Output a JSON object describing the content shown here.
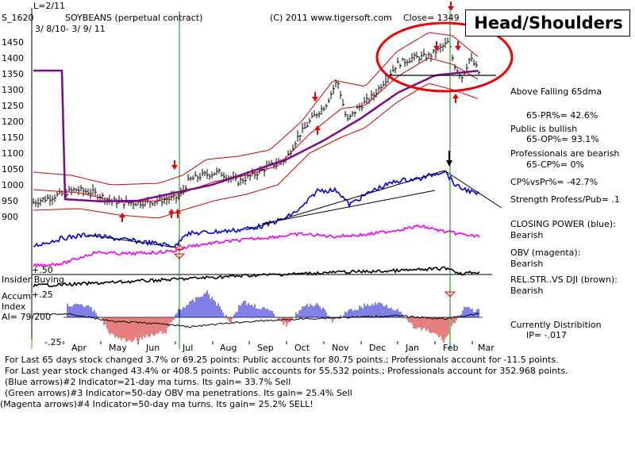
{
  "header": {
    "lscale": "L=2/11",
    "symbol": "S_1620",
    "name": "SOYBEANS (perpetual contract)",
    "copyright": "(C) 2011 www.tigersoft.com",
    "close": "Close= 1349",
    "daterange": "3/ 8/10- 3/ 9/ 11"
  },
  "annotation": "Head/Shoulders",
  "side_panel": [
    "Above Falling 65dma",
    "65-PR%= 42.6%",
    "Public is bullish",
    "65-OP%= 93.1%",
    "Professionals are bearish",
    "65-CP%= 0%",
    "CP%vsPr%= -42.7%",
    "Strength Profess/Pub= .1",
    "CLOSING POWER (blue):",
    "Bearish",
    "OBV (magenta):",
    "Bearish",
    "REL.STR..VS DJI (brown):",
    "Bearish",
    "Currently Distribition",
    "IP= -.017"
  ],
  "insider_labels": {
    "plus50": "+.50",
    "insider": "Insider Buying",
    "accum": "Accum",
    "plus25": "+.25",
    "index": "Index",
    "ai": "AI= 79/200",
    "minus25": "-.25"
  },
  "footer": [
    "For Last 65 days stock changed  3.7% or  69.25 points:  Public accounts for  80.75 points.;  Professionals account for -11.5 points.",
    "For Last year stock changed  43.4% or  408.5 points:  Public accounts for  55.532 points.;  Professionals account for  352.968 points.",
    "(Blue arrows)#2 Indicator=21-day ma turns. Its gain= 33.7% Sell",
    "(Green arrows)#3 Indicator=50-day OBV ma penetrations. Its gain= 25.4% Sell",
    "(Magenta arrows)#4 Indicator=50-day ma turns. Its gain= 25.2% SELL!"
  ],
  "colors": {
    "price": "#000000",
    "band": "#cc0000",
    "ma65": "#7a0a8c",
    "closing_power": "#0000ee",
    "obv": "#ee00ee",
    "relstr": "#000000",
    "accum_pos": "#0000cc",
    "accum_neg": "#cc0000",
    "vline": "#008800",
    "circle": "#ee0000",
    "arrow": "#ee0000"
  },
  "chart_data": {
    "type": "line",
    "title": "SOYBEANS (perpetual contract)",
    "y_ticks": [
      1450,
      1400,
      1350,
      1300,
      1250,
      1200,
      1150,
      1100,
      1050,
      1000,
      950,
      900
    ],
    "ylim": [
      900,
      1450
    ],
    "x_months": [
      "Apr",
      "May",
      "Jun",
      "Jul",
      "Aug",
      "Sep",
      "Oct",
      "Nov",
      "Dec",
      "Jan",
      "Feb",
      "Mar"
    ],
    "price_close": [
      {
        "x": "Mar",
        "y": 940
      },
      {
        "x": "Apr",
        "y": 960
      },
      {
        "x": "Apr",
        "y": 980
      },
      {
        "x": "May",
        "y": 945
      },
      {
        "x": "May",
        "y": 940
      },
      {
        "x": "Jun",
        "y": 945
      },
      {
        "x": "Jun",
        "y": 960
      },
      {
        "x": "Jul",
        "y": 1010
      },
      {
        "x": "Jul",
        "y": 1030
      },
      {
        "x": "Aug",
        "y": 1040
      },
      {
        "x": "Aug",
        "y": 1010
      },
      {
        "x": "Sep",
        "y": 1040
      },
      {
        "x": "Sep",
        "y": 1070
      },
      {
        "x": "Oct",
        "y": 1130
      },
      {
        "x": "Oct",
        "y": 1220
      },
      {
        "x": "Nov",
        "y": 1330
      },
      {
        "x": "Nov",
        "y": 1200
      },
      {
        "x": "Dec",
        "y": 1280
      },
      {
        "x": "Dec",
        "y": 1330
      },
      {
        "x": "Jan",
        "y": 1400
      },
      {
        "x": "Jan",
        "y": 1420
      },
      {
        "x": "Feb",
        "y": 1440
      },
      {
        "x": "Feb",
        "y": 1370
      },
      {
        "x": "Mar",
        "y": 1349
      }
    ],
    "ma65": [
      {
        "x": "Apr",
        "y": 955
      },
      {
        "x": "May",
        "y": 948
      },
      {
        "x": "Jun",
        "y": 950
      },
      {
        "x": "Jul",
        "y": 975
      },
      {
        "x": "Aug",
        "y": 1000
      },
      {
        "x": "Sep",
        "y": 1040
      },
      {
        "x": "Oct",
        "y": 1080
      },
      {
        "x": "Nov",
        "y": 1140
      },
      {
        "x": "Dec",
        "y": 1210
      },
      {
        "x": "Jan",
        "y": 1290
      },
      {
        "x": "Feb",
        "y": 1345
      },
      {
        "x": "Mar",
        "y": 1360
      }
    ],
    "neckline": 1345
  }
}
